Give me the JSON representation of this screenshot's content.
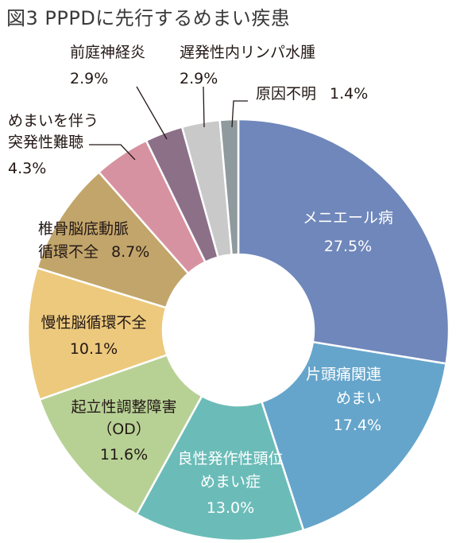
{
  "chart_data": {
    "type": "donut",
    "title": "図3 PPPDに先行するめまい疾患",
    "unit": "%",
    "slices": [
      {
        "lines": [
          "メニエール病"
        ],
        "value": 27.5,
        "value_text": "27.5%",
        "color": "#6f87ba"
      },
      {
        "lines": [
          "片頭痛関連",
          "めまい"
        ],
        "value": 17.4,
        "value_text": "17.4%",
        "color": "#66a5cb"
      },
      {
        "lines": [
          "良性発作性頭位",
          "めまい症"
        ],
        "value": 13.0,
        "value_text": "13.0%",
        "color": "#6bbcb8"
      },
      {
        "lines": [
          "起立性調整障害",
          "（OD）"
        ],
        "value": 11.6,
        "value_text": "11.6%",
        "color": "#b7d195"
      },
      {
        "lines": [
          "慢性脳循環不全"
        ],
        "value": 10.1,
        "value_text": "10.1%",
        "color": "#ecc97d"
      },
      {
        "lines": [
          "椎骨脳底動脈",
          "循環不全"
        ],
        "value": 8.7,
        "value_text": "8.7%",
        "color": "#c2a56b"
      },
      {
        "lines": [
          "めまいを伴う",
          "突発性難聴"
        ],
        "value": 4.3,
        "value_text": "4.3%",
        "color": "#d792a1"
      },
      {
        "lines": [
          "前庭神経炎"
        ],
        "value": 2.9,
        "value_text": "2.9%",
        "color": "#8c7088"
      },
      {
        "lines": [
          "遅発性内リンパ水腫"
        ],
        "value": 2.9,
        "value_text": "2.9%",
        "color": "#c9c9c9"
      },
      {
        "lines": [
          "原因不明"
        ],
        "value": 1.4,
        "value_text": "1.4%",
        "color": "#8f9a9e"
      }
    ]
  }
}
